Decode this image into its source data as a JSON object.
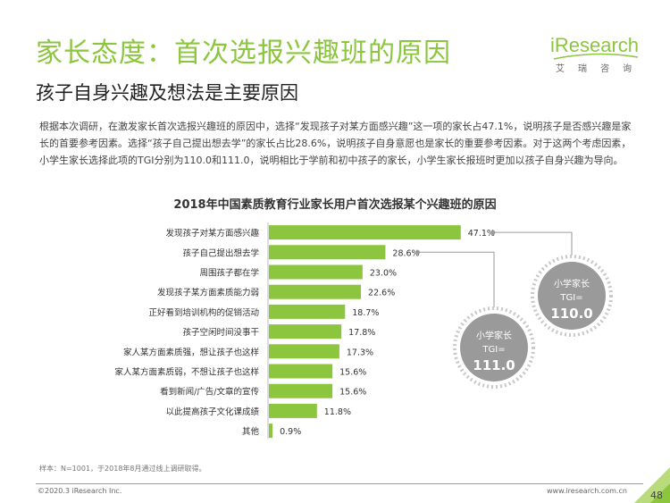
{
  "header": {
    "title": "家长态度：首次选报兴趣班的原因",
    "subtitle": "孩子自身兴趣及想法是主要原因"
  },
  "logo": {
    "text": "iResearch",
    "chinese": "艾瑞咨询",
    "color": "#8cc63f"
  },
  "intro": {
    "paragraph": "根据本次调研，在激发家长首次选报兴趣班的原因中，选择“发现孩子对某方面感兴趣”这一项的家长占47.1%，说明孩子是否感兴趣是家长的首要参考因素。选择“孩子自己提出想去学”的家长占比28.6%，说明孩子自身意愿也是家长的重要参考因素。对于这两个考虑因素，小学生家长选择此项的TGI分别为110.0和111.0，说明相比于学前和初中孩子的家长，小学生家长报班时更加以孩子自身兴趣为导向。"
  },
  "chart_data": {
    "type": "bar",
    "orientation": "horizontal",
    "title": "2018年中国素质教育行业家长用户首次选报某个兴趣班的原因",
    "categories": [
      "发现孩子对某方面感兴趣",
      "孩子自己提出想去学",
      "周围孩子都在学",
      "发现孩子某方面素质能力弱",
      "正好看到培训机构的促销活动",
      "孩子空闲时间没事干",
      "家人某方面素质强，想让孩子也这样",
      "家人某方面素质弱，不想让孩子也这样",
      "看到新闻/广告/文章的宣传",
      "以此提高孩子文化课成绩",
      "其他"
    ],
    "values": [
      47.1,
      28.6,
      23.0,
      22.6,
      18.7,
      17.8,
      17.3,
      15.6,
      15.6,
      11.8,
      0.9
    ],
    "value_labels": [
      "47.1%",
      "28.6%",
      "23.0%",
      "22.6%",
      "18.7%",
      "17.8%",
      "17.3%",
      "15.6%",
      "15.6%",
      "11.8%",
      "0.9%"
    ],
    "xlim": [
      0,
      50
    ],
    "grid": false,
    "bar_color": "#8cc63f",
    "callouts": [
      {
        "category_index": 0,
        "label": "小学家长",
        "metric": "TGI=",
        "value": "110.0"
      },
      {
        "category_index": 1,
        "label": "小学家长",
        "metric": "TGI=",
        "value": "111.0"
      }
    ]
  },
  "footer": {
    "sample": "样本：N=1001，于2018年8月通过线上调研取得。",
    "copyright": "©2020.3 iResearch Inc.",
    "website": "www.iresearch.com.cn",
    "page": "48"
  },
  "colors": {
    "accent": "#8cc63f",
    "callout_gray": "#9a9a9a",
    "callout_ring": "#c8c8c8"
  }
}
